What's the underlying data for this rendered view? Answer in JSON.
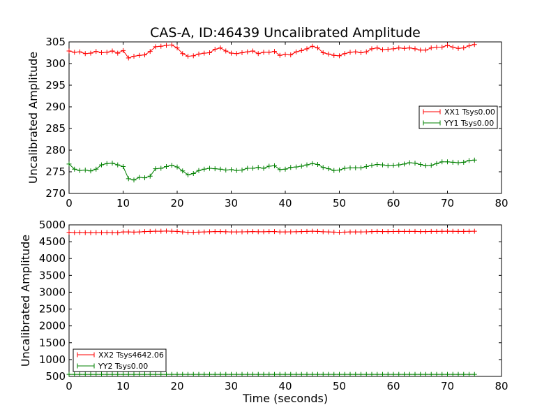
{
  "figure": {
    "title": "CAS-A, ID:46439 Uncalibrated Amplitude"
  },
  "chart_data": [
    {
      "type": "line",
      "title": "CAS-A, ID:46439 Uncalibrated Amplitude",
      "xlabel": "",
      "ylabel": "Uncalibrated Amplitude",
      "xlim": [
        0,
        80
      ],
      "ylim": [
        270,
        305
      ],
      "xticks": [
        "0",
        "10",
        "20",
        "30",
        "40",
        "50",
        "60",
        "70",
        "80"
      ],
      "yticks": [
        "270",
        "275",
        "280",
        "285",
        "290",
        "295",
        "300",
        "305"
      ],
      "grid": false,
      "legend_position": "center-right",
      "x": [
        0,
        1,
        2,
        3,
        4,
        5,
        6,
        7,
        8,
        9,
        10,
        11,
        12,
        13,
        14,
        15,
        16,
        17,
        18,
        19,
        20,
        21,
        22,
        23,
        24,
        25,
        26,
        27,
        28,
        29,
        30,
        31,
        32,
        33,
        34,
        35,
        36,
        37,
        38,
        39,
        40,
        41,
        42,
        43,
        44,
        45,
        46,
        47,
        48,
        49,
        50,
        51,
        52,
        53,
        54,
        55,
        56,
        57,
        58,
        59,
        60,
        61,
        62,
        63,
        64,
        65,
        66,
        67,
        68,
        69,
        70,
        71,
        72,
        73,
        74,
        75
      ],
      "series": [
        {
          "name": "XX1 Tsys0.00",
          "color": "#ff0000",
          "values": [
            302.9,
            302.6,
            302.7,
            302.3,
            302.4,
            302.8,
            302.5,
            302.6,
            302.9,
            302.4,
            303.0,
            301.3,
            301.7,
            301.9,
            302.0,
            302.8,
            303.9,
            304.0,
            304.2,
            304.3,
            303.6,
            302.3,
            301.7,
            301.8,
            302.2,
            302.4,
            302.5,
            303.3,
            303.6,
            302.9,
            302.4,
            302.3,
            302.5,
            302.7,
            302.9,
            302.3,
            302.6,
            302.6,
            302.8,
            301.9,
            302.1,
            302.0,
            302.7,
            303.0,
            303.4,
            304.0,
            303.6,
            302.5,
            302.2,
            301.9,
            301.8,
            302.3,
            302.6,
            302.7,
            302.5,
            302.7,
            303.4,
            303.6,
            303.2,
            303.3,
            303.4,
            303.6,
            303.5,
            303.6,
            303.4,
            303.1,
            303.1,
            303.6,
            303.8,
            303.8,
            304.2,
            303.8,
            303.5,
            303.6,
            304.1,
            304.4
          ]
        },
        {
          "name": "YY1 Tsys0.00",
          "color": "#008000",
          "values": [
            276.8,
            275.6,
            275.3,
            275.4,
            275.2,
            275.6,
            276.6,
            276.9,
            277.0,
            276.6,
            276.2,
            273.4,
            273.1,
            273.7,
            273.6,
            274.0,
            275.7,
            275.8,
            276.2,
            276.5,
            276.1,
            275.2,
            274.3,
            274.6,
            275.3,
            275.6,
            275.8,
            275.7,
            275.6,
            275.4,
            275.5,
            275.3,
            275.4,
            275.8,
            275.8,
            276.0,
            275.8,
            276.3,
            276.4,
            275.5,
            275.6,
            276.0,
            276.1,
            276.3,
            276.6,
            276.9,
            276.7,
            276.0,
            275.7,
            275.3,
            275.4,
            275.8,
            275.9,
            275.9,
            275.9,
            276.2,
            276.5,
            276.7,
            276.6,
            276.4,
            276.5,
            276.6,
            276.8,
            277.1,
            277.0,
            276.7,
            276.4,
            276.5,
            276.9,
            277.3,
            277.3,
            277.2,
            277.1,
            277.2,
            277.6,
            277.7
          ]
        }
      ]
    },
    {
      "type": "line",
      "title": "",
      "xlabel": "Time (seconds)",
      "ylabel": "Uncalibrated Amplitude",
      "xlim": [
        0,
        80
      ],
      "ylim": [
        500,
        5000
      ],
      "xticks": [
        "0",
        "10",
        "20",
        "30",
        "40",
        "50",
        "60",
        "70",
        "80"
      ],
      "yticks": [
        "500",
        "1000",
        "1500",
        "2000",
        "2500",
        "3000",
        "3500",
        "4000",
        "4500",
        "5000"
      ],
      "grid": false,
      "legend_position": "lower-left",
      "x": [
        0,
        1,
        2,
        3,
        4,
        5,
        6,
        7,
        8,
        9,
        10,
        11,
        12,
        13,
        14,
        15,
        16,
        17,
        18,
        19,
        20,
        21,
        22,
        23,
        24,
        25,
        26,
        27,
        28,
        29,
        30,
        31,
        32,
        33,
        34,
        35,
        36,
        37,
        38,
        39,
        40,
        41,
        42,
        43,
        44,
        45,
        46,
        47,
        48,
        49,
        50,
        51,
        52,
        53,
        54,
        55,
        56,
        57,
        58,
        59,
        60,
        61,
        62,
        63,
        64,
        65,
        66,
        67,
        68,
        69,
        70,
        71,
        72,
        73,
        74,
        75
      ],
      "series": [
        {
          "name": "XX2 Tsys4642.06",
          "color": "#ff0000",
          "values": [
            4780,
            4770,
            4775,
            4770,
            4768,
            4772,
            4770,
            4775,
            4770,
            4765,
            4790,
            4790,
            4785,
            4790,
            4800,
            4805,
            4810,
            4810,
            4815,
            4810,
            4805,
            4790,
            4780,
            4780,
            4785,
            4790,
            4795,
            4800,
            4800,
            4795,
            4790,
            4790,
            4792,
            4795,
            4800,
            4795,
            4795,
            4800,
            4800,
            4790,
            4790,
            4792,
            4795,
            4800,
            4805,
            4810,
            4805,
            4795,
            4790,
            4785,
            4780,
            4785,
            4790,
            4790,
            4790,
            4792,
            4800,
            4805,
            4800,
            4800,
            4802,
            4805,
            4805,
            4805,
            4805,
            4800,
            4800,
            4805,
            4805,
            4808,
            4810,
            4808,
            4805,
            4805,
            4808,
            4810
          ]
        },
        {
          "name": "YY2 Tsys0.00",
          "color": "#008000",
          "values": [
            560,
            560,
            560,
            560,
            560,
            560,
            560,
            560,
            560,
            560,
            560,
            560,
            560,
            560,
            560,
            560,
            560,
            560,
            560,
            560,
            560,
            560,
            560,
            560,
            560,
            560,
            560,
            560,
            560,
            560,
            560,
            560,
            560,
            560,
            560,
            560,
            560,
            560,
            560,
            560,
            560,
            560,
            560,
            560,
            560,
            560,
            560,
            560,
            560,
            560,
            560,
            560,
            560,
            560,
            560,
            560,
            560,
            560,
            560,
            560,
            560,
            560,
            560,
            560,
            560,
            560,
            560,
            560,
            560,
            560,
            560,
            560,
            560,
            560,
            560,
            560
          ]
        }
      ]
    }
  ]
}
